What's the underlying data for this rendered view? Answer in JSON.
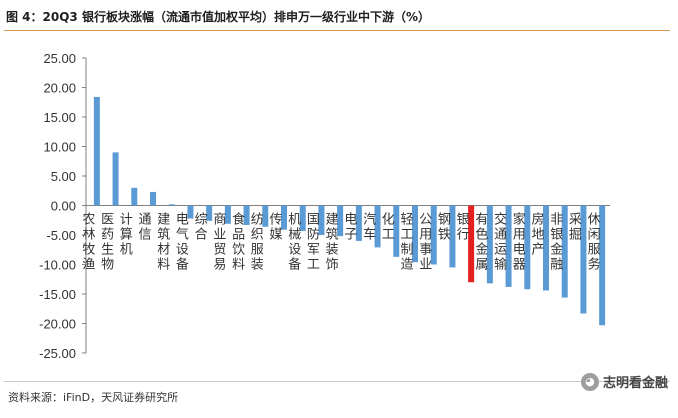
{
  "header": {
    "title": "图 4：20Q3 银行板块涨幅（流通市值加权平均）排申万一级行业中下游（%）"
  },
  "footer": {
    "source": "资料来源：iFinD，天风证券研究所",
    "watermark": "志明看金融",
    "watermark_icon": "wechat-logo"
  },
  "colors": {
    "bar": "#5b9bd5",
    "highlight": "#e41f1f",
    "axis": "#7f7f7f",
    "title_rule": "#d39a55"
  },
  "chart_data": {
    "type": "bar",
    "title": "20Q3 银行板块涨幅（流通市值加权平均）排申万一级行业中下游（%）",
    "xlabel": "",
    "ylabel": "%",
    "ylim": [
      -25,
      25
    ],
    "yticks": [
      "25.00",
      "20.00",
      "15.00",
      "10.00",
      "5.00",
      "0.00",
      "-5.00",
      "-10.00",
      "-15.00",
      "-20.00",
      "-25.00"
    ],
    "highlight_category": "银行",
    "categories": [
      "农林牧渔",
      "医药生物",
      "计算机",
      "通信",
      "建筑材料",
      "电气设备",
      "综合",
      "商业贸易",
      "食品饮料",
      "纺织服装",
      "传媒",
      "机械设备",
      "国防军工",
      "建筑装饰",
      "电子",
      "汽车",
      "化工",
      "轻工制造",
      "公用事业",
      "钢铁",
      "银行",
      "有色金属",
      "交通运输",
      "家用电器",
      "房地产",
      "非银金融",
      "采掘",
      "休闲服务"
    ],
    "values": [
      18.4,
      9.0,
      3.0,
      2.3,
      0.2,
      -2.2,
      -2.6,
      -3.1,
      -3.3,
      -3.6,
      -4.1,
      -4.3,
      -5.0,
      -5.2,
      -6.0,
      -7.1,
      -8.7,
      -9.6,
      -10.0,
      -10.5,
      -13.0,
      -13.2,
      -13.8,
      -14.2,
      -14.4,
      -15.6,
      -18.3,
      -20.3
    ]
  }
}
